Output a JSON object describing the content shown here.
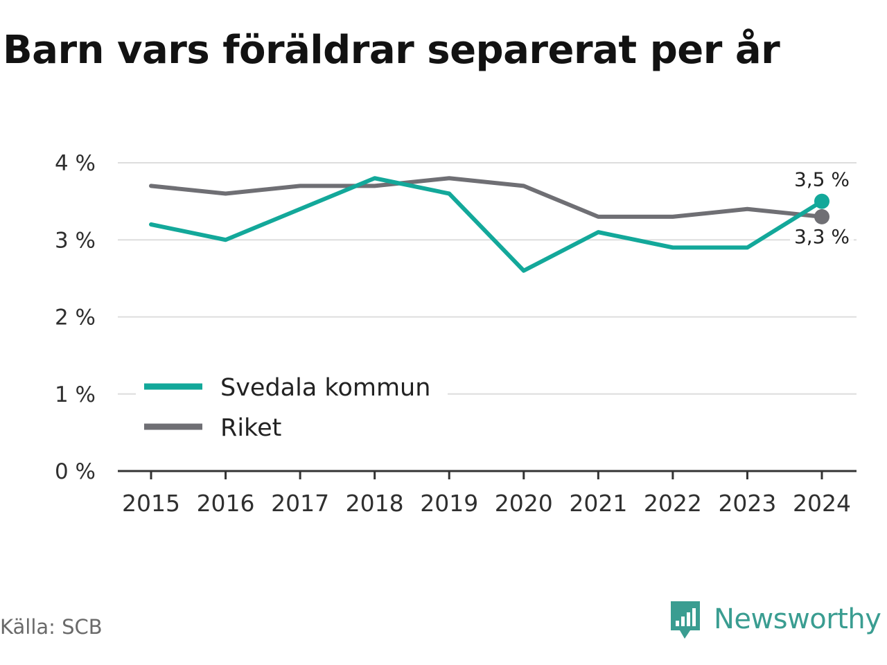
{
  "title": "Barn vars föräldrar separerat per år",
  "source": "Källa: SCB",
  "brand": "Newsworthy",
  "colors": {
    "svedala": "#13a89a",
    "riket": "#6f6f74",
    "grid": "#dddddd",
    "brand": "#3a9d91"
  },
  "chart_data": {
    "type": "line",
    "x": [
      "2015",
      "2016",
      "2017",
      "2018",
      "2019",
      "2020",
      "2021",
      "2022",
      "2023",
      "2024"
    ],
    "ylim": [
      0,
      4
    ],
    "yticks": [
      "0 %",
      "1 %",
      "2 %",
      "3 %",
      "4 %"
    ],
    "series": [
      {
        "name": "Svedala kommun",
        "values": [
          3.2,
          3.0,
          3.4,
          3.8,
          3.6,
          2.6,
          3.1,
          2.9,
          2.9,
          3.5
        ],
        "end_label": "3,5 %"
      },
      {
        "name": "Riket",
        "values": [
          3.7,
          3.6,
          3.7,
          3.7,
          3.8,
          3.7,
          3.3,
          3.3,
          3.4,
          3.3
        ],
        "end_label": "3,3 %"
      }
    ],
    "legend_position": "bottom-left",
    "grid": true
  }
}
